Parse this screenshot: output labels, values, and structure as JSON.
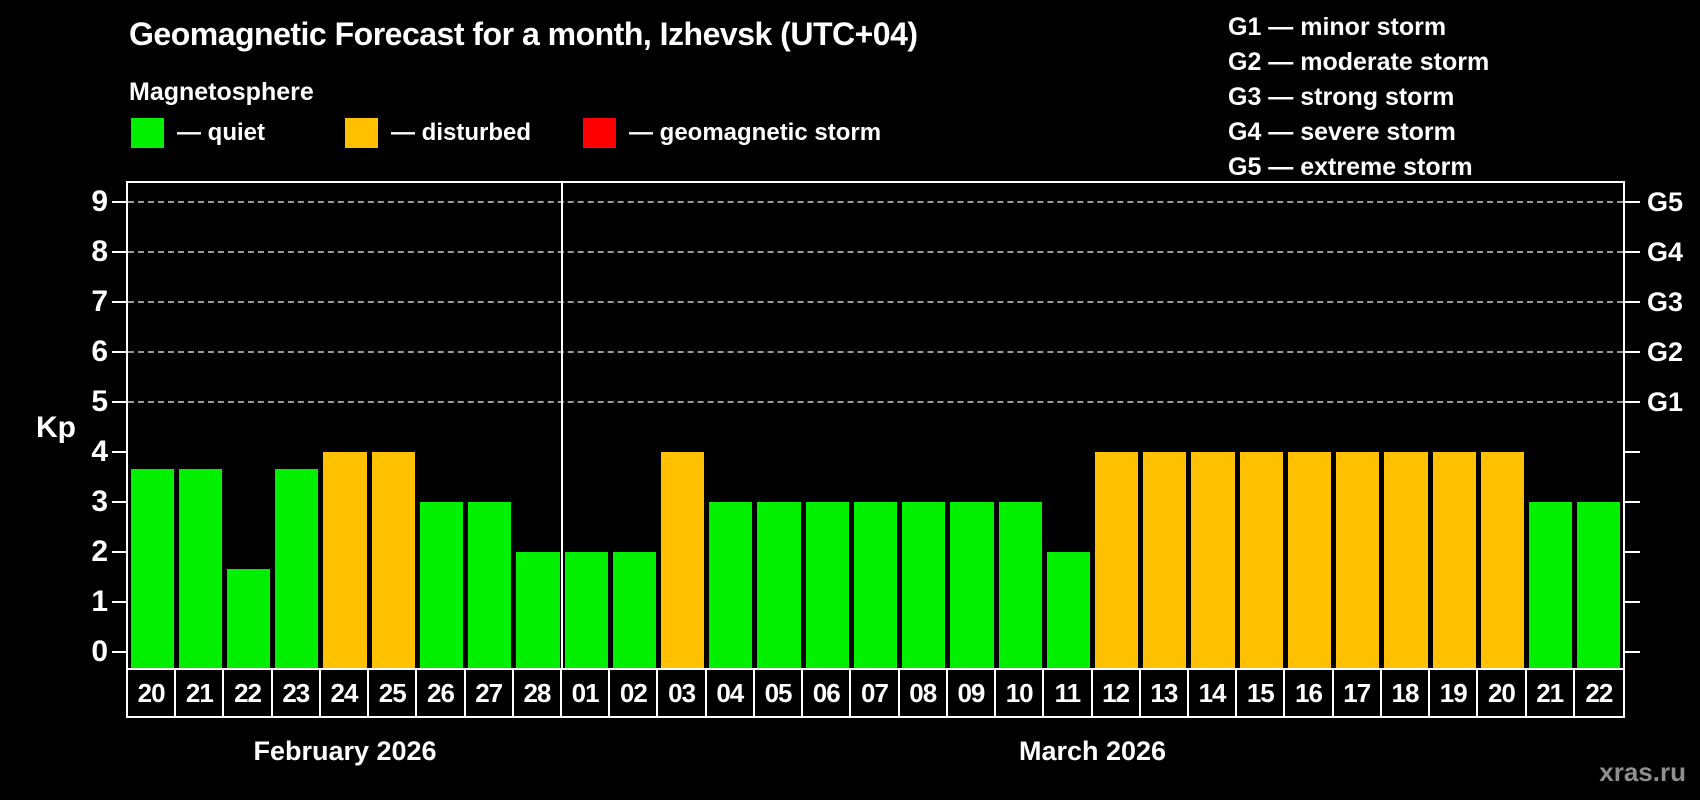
{
  "title": "Geomagnetic Forecast for a month, Izhevsk (UTC+04)",
  "subtitle": "Magnetosphere",
  "legend": {
    "items": [
      {
        "key": "quiet",
        "label": "— quiet"
      },
      {
        "key": "disturbed",
        "label": "— disturbed"
      },
      {
        "key": "storm",
        "label": "— geomagnetic storm"
      }
    ]
  },
  "storm_scale": [
    "G1 — minor storm",
    "G2 — moderate storm",
    "G3 — strong storm",
    "G4 — severe storm",
    "G5 — extreme storm"
  ],
  "watermark": "xras.ru",
  "colors": {
    "quiet": "#00f000",
    "disturbed": "#ffc000",
    "storm": "#ff0000",
    "grid": "#999999",
    "axis": "#ffffff",
    "watermark": "#8f8f8f"
  },
  "chart_data": {
    "type": "bar",
    "ylabel": "Kp",
    "yticks": [
      0,
      1,
      2,
      3,
      4,
      5,
      6,
      7,
      8,
      9
    ],
    "ylim": [
      -0.35,
      9.35
    ],
    "grid_levels": [
      5,
      6,
      7,
      8,
      9
    ],
    "legend_position": "top",
    "right_axis": [
      {
        "kp": 5,
        "label": "G1"
      },
      {
        "kp": 6,
        "label": "G2"
      },
      {
        "kp": 7,
        "label": "G3"
      },
      {
        "kp": 8,
        "label": "G4"
      },
      {
        "kp": 9,
        "label": "G5"
      }
    ],
    "months": [
      {
        "label": "February 2026",
        "start_index": 0,
        "count": 9
      },
      {
        "label": "March 2026",
        "start_index": 9,
        "count": 22
      }
    ],
    "bars": [
      {
        "day": "20",
        "value": 3.67,
        "status": "quiet"
      },
      {
        "day": "21",
        "value": 3.67,
        "status": "quiet"
      },
      {
        "day": "22",
        "value": 1.67,
        "status": "quiet"
      },
      {
        "day": "23",
        "value": 3.67,
        "status": "quiet"
      },
      {
        "day": "24",
        "value": 4,
        "status": "disturbed"
      },
      {
        "day": "25",
        "value": 4,
        "status": "disturbed"
      },
      {
        "day": "26",
        "value": 3,
        "status": "quiet"
      },
      {
        "day": "27",
        "value": 3,
        "status": "quiet"
      },
      {
        "day": "28",
        "value": 2,
        "status": "quiet"
      },
      {
        "day": "01",
        "value": 2,
        "status": "quiet"
      },
      {
        "day": "02",
        "value": 2,
        "status": "quiet"
      },
      {
        "day": "03",
        "value": 4,
        "status": "disturbed"
      },
      {
        "day": "04",
        "value": 3,
        "status": "quiet"
      },
      {
        "day": "05",
        "value": 3,
        "status": "quiet"
      },
      {
        "day": "06",
        "value": 3,
        "status": "quiet"
      },
      {
        "day": "07",
        "value": 3,
        "status": "quiet"
      },
      {
        "day": "08",
        "value": 3,
        "status": "quiet"
      },
      {
        "day": "09",
        "value": 3,
        "status": "quiet"
      },
      {
        "day": "10",
        "value": 3,
        "status": "quiet"
      },
      {
        "day": "11",
        "value": 2,
        "status": "quiet"
      },
      {
        "day": "12",
        "value": 4,
        "status": "disturbed"
      },
      {
        "day": "13",
        "value": 4,
        "status": "disturbed"
      },
      {
        "day": "14",
        "value": 4,
        "status": "disturbed"
      },
      {
        "day": "15",
        "value": 4,
        "status": "disturbed"
      },
      {
        "day": "16",
        "value": 4,
        "status": "disturbed"
      },
      {
        "day": "17",
        "value": 4,
        "status": "disturbed"
      },
      {
        "day": "18",
        "value": 4,
        "status": "disturbed"
      },
      {
        "day": "19",
        "value": 4,
        "status": "disturbed"
      },
      {
        "day": "20",
        "value": 4,
        "status": "disturbed"
      },
      {
        "day": "21",
        "value": 3,
        "status": "quiet"
      },
      {
        "day": "22",
        "value": 3,
        "status": "quiet"
      }
    ]
  }
}
